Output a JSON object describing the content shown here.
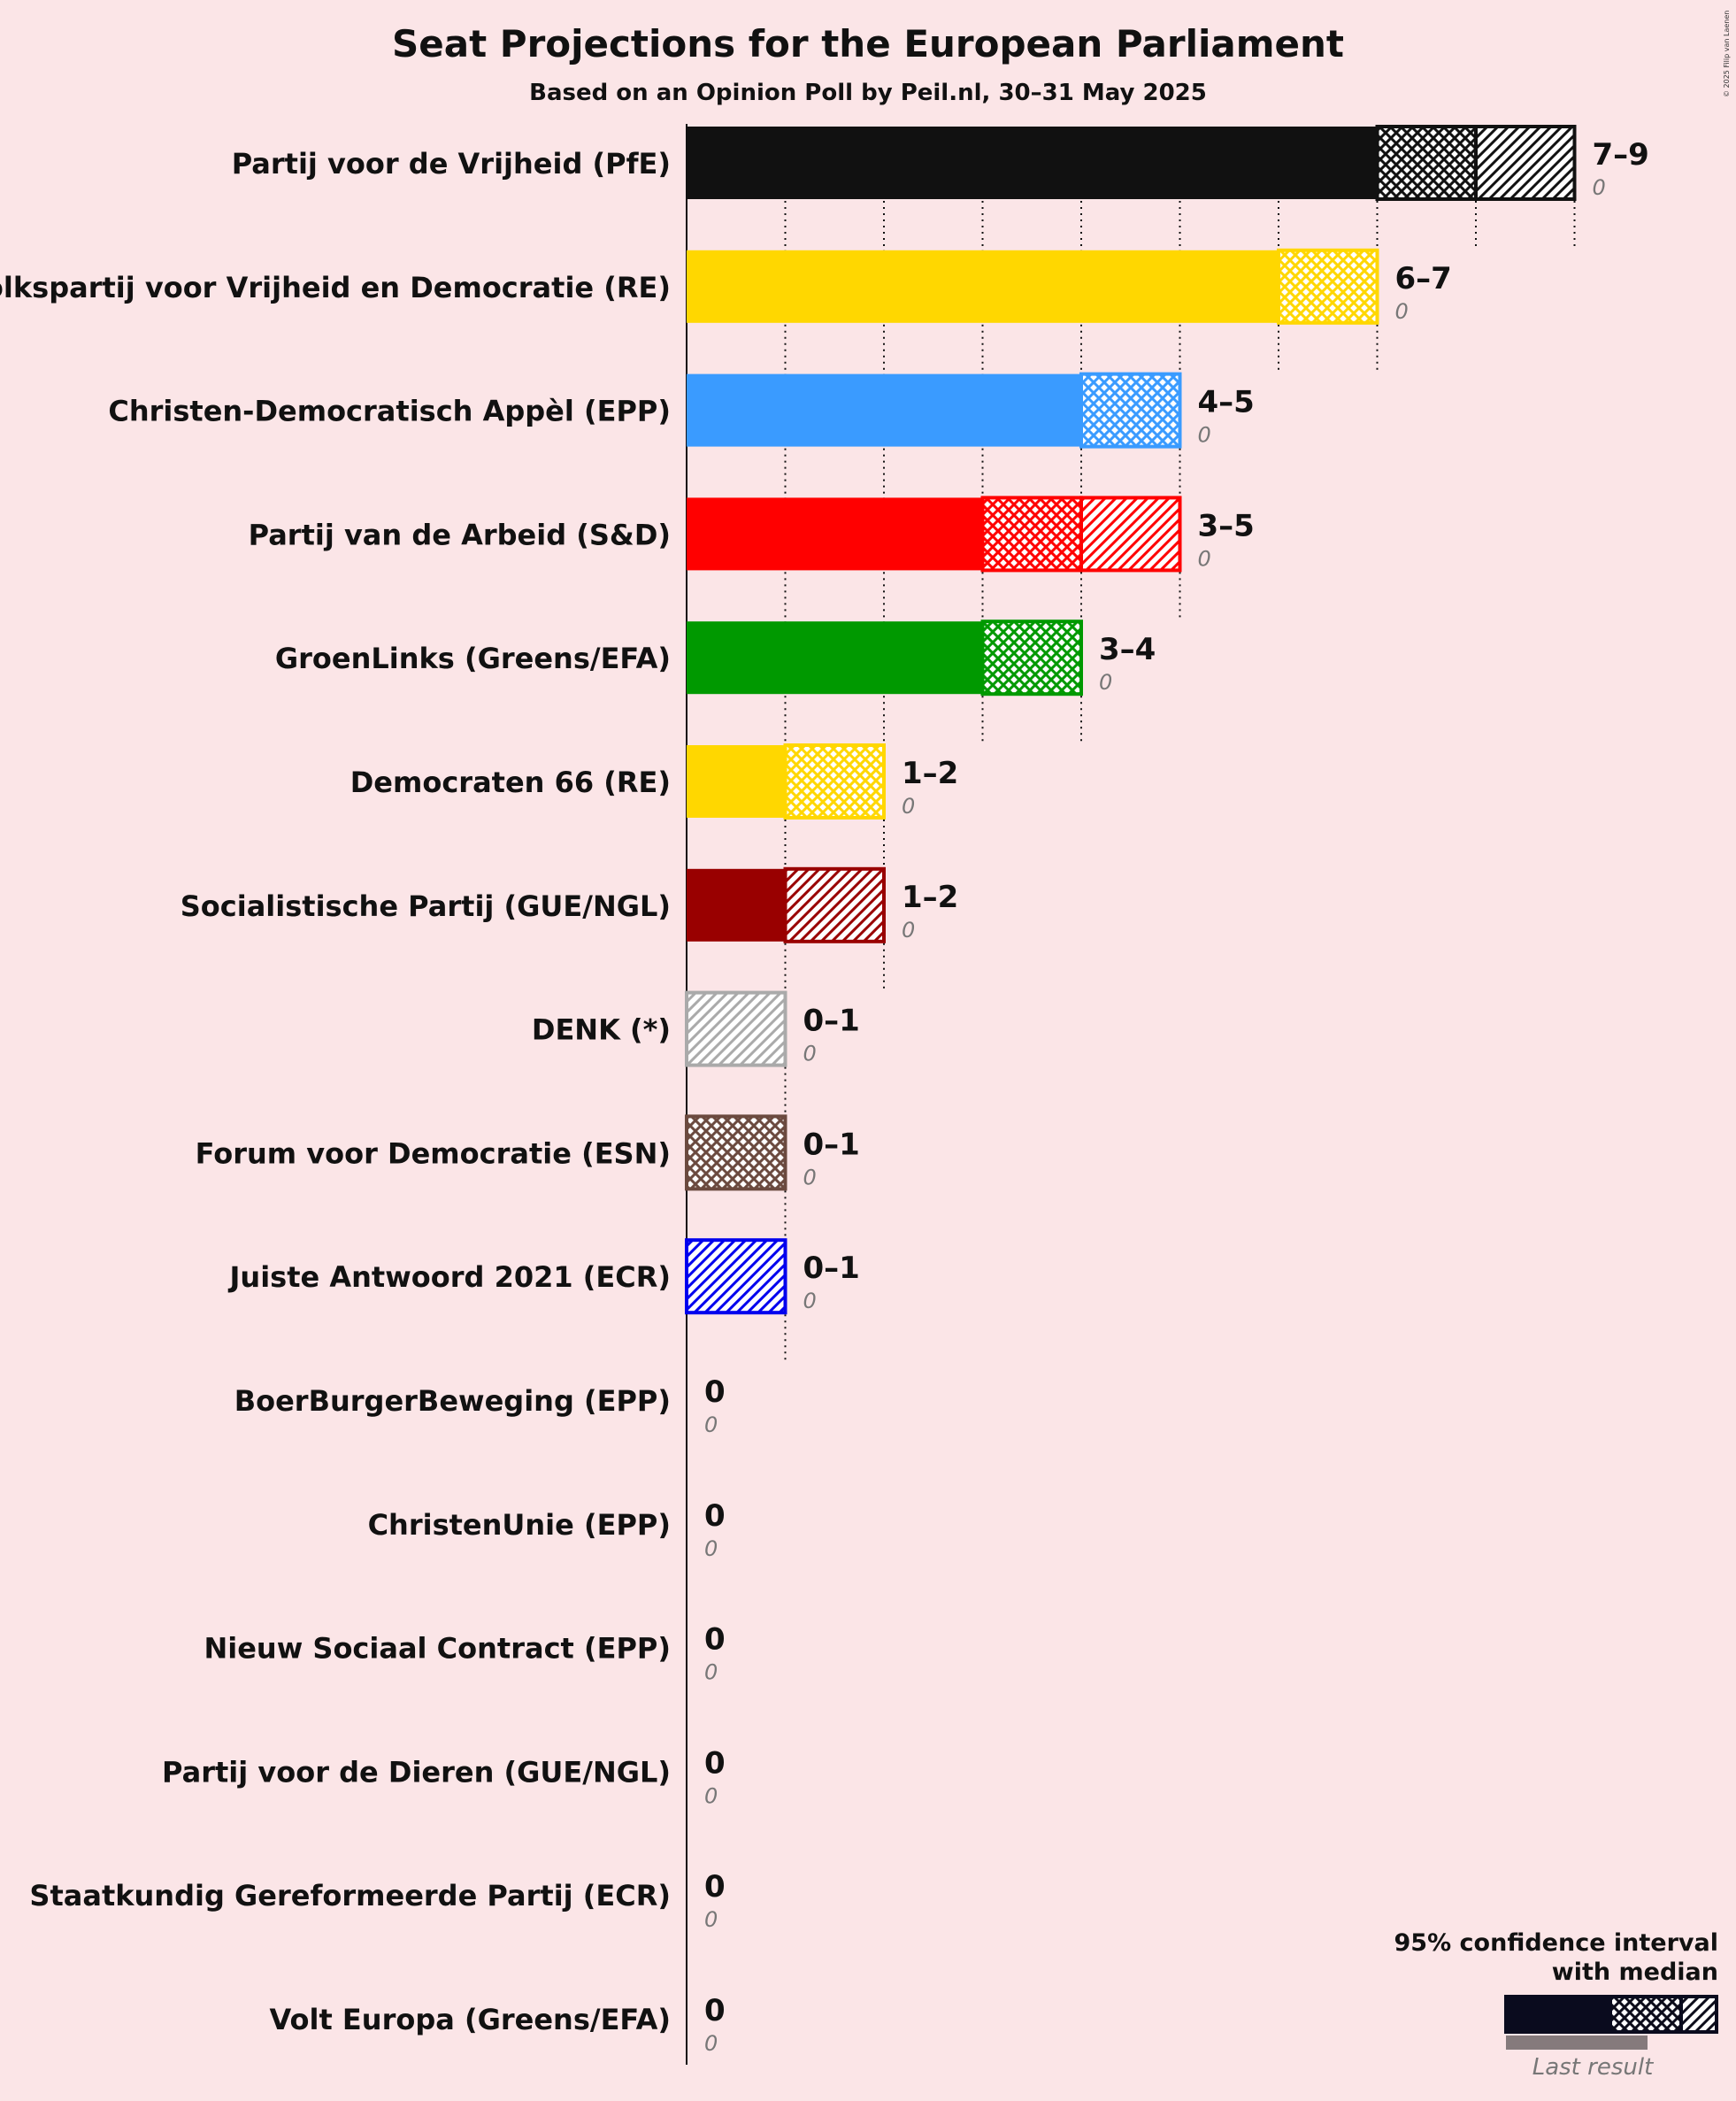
{
  "chart_data": {
    "type": "bar",
    "orientation": "horizontal",
    "title": "Seat Projections for the European Parliament",
    "subtitle": "Based on an Opinion Poll by Peil.nl, 30–31 May 2025",
    "copyright": "© 2025 Filip van Laenen",
    "x_range": [
      0,
      9
    ],
    "grid": "dotted vertical lines at each seat",
    "legend": {
      "position": "bottom-right",
      "title_line1": "95% confidence interval",
      "title_line2": "with median",
      "last_result_label": "Last result"
    },
    "parties": [
      {
        "name": "Partij voor de Vrijheid (PfE)",
        "color": "#111111",
        "low": 7,
        "median": 8,
        "high": 9,
        "range_label": "7–9",
        "last_result": 0,
        "last_label": "0"
      },
      {
        "name": "Volkspartij voor Vrijheid en Democratie (RE)",
        "color": "#FFD700",
        "low": 6,
        "median": 7,
        "high": 7,
        "range_label": "6–7",
        "last_result": 0,
        "last_label": "0"
      },
      {
        "name": "Christen-Democratisch Appèl (EPP)",
        "color": "#3A9BFF",
        "low": 4,
        "median": 5,
        "high": 5,
        "range_label": "4–5",
        "last_result": 0,
        "last_label": "0"
      },
      {
        "name": "Partij van de Arbeid (S&D)",
        "color": "#FF0000",
        "low": 3,
        "median": 4,
        "high": 5,
        "range_label": "3–5",
        "last_result": 0,
        "last_label": "0"
      },
      {
        "name": "GroenLinks (Greens/EFA)",
        "color": "#009900",
        "low": 3,
        "median": 4,
        "high": 4,
        "range_label": "3–4",
        "last_result": 0,
        "last_label": "0"
      },
      {
        "name": "Democraten 66 (RE)",
        "color": "#FFD700",
        "low": 1,
        "median": 2,
        "high": 2,
        "range_label": "1–2",
        "last_result": 0,
        "last_label": "0"
      },
      {
        "name": "Socialistische Partij (GUE/NGL)",
        "color": "#990000",
        "low": 1,
        "median": 1,
        "high": 2,
        "range_label": "1–2",
        "last_result": 0,
        "last_label": "0"
      },
      {
        "name": "DENK (*)",
        "color": "#AAAAAA",
        "low": 0,
        "median": 0,
        "high": 1,
        "range_label": "0–1",
        "last_result": 0,
        "last_label": "0"
      },
      {
        "name": "Forum voor Democratie (ESN)",
        "color": "#6B4A3F",
        "low": 0,
        "median": 1,
        "high": 1,
        "range_label": "0–1",
        "last_result": 0,
        "last_label": "0"
      },
      {
        "name": "Juiste Antwoord 2021 (ECR)",
        "color": "#0000EE",
        "low": 0,
        "median": 0,
        "high": 1,
        "range_label": "0–1",
        "last_result": 0,
        "last_label": "0"
      },
      {
        "name": "BoerBurgerBeweging (EPP)",
        "color": "#6BBE45",
        "low": 0,
        "median": 0,
        "high": 0,
        "range_label": "0",
        "last_result": 0,
        "last_label": "0"
      },
      {
        "name": "ChristenUnie (EPP)",
        "color": "#00A5E8",
        "low": 0,
        "median": 0,
        "high": 0,
        "range_label": "0",
        "last_result": 0,
        "last_label": "0"
      },
      {
        "name": "Nieuw Sociaal Contract (EPP)",
        "color": "#F0C400",
        "low": 0,
        "median": 0,
        "high": 0,
        "range_label": "0",
        "last_result": 0,
        "last_label": "0"
      },
      {
        "name": "Partij voor de Dieren (GUE/NGL)",
        "color": "#006B2D",
        "low": 0,
        "median": 0,
        "high": 0,
        "range_label": "0",
        "last_result": 0,
        "last_label": "0"
      },
      {
        "name": "Staatkundig Gereformeerde Partij (ECR)",
        "color": "#EA5B0C",
        "low": 0,
        "median": 0,
        "high": 0,
        "range_label": "0",
        "last_result": 0,
        "last_label": "0"
      },
      {
        "name": "Volt Europa (Greens/EFA)",
        "color": "#502379",
        "low": 0,
        "median": 0,
        "high": 0,
        "range_label": "0",
        "last_result": 0,
        "last_label": "0"
      }
    ]
  }
}
